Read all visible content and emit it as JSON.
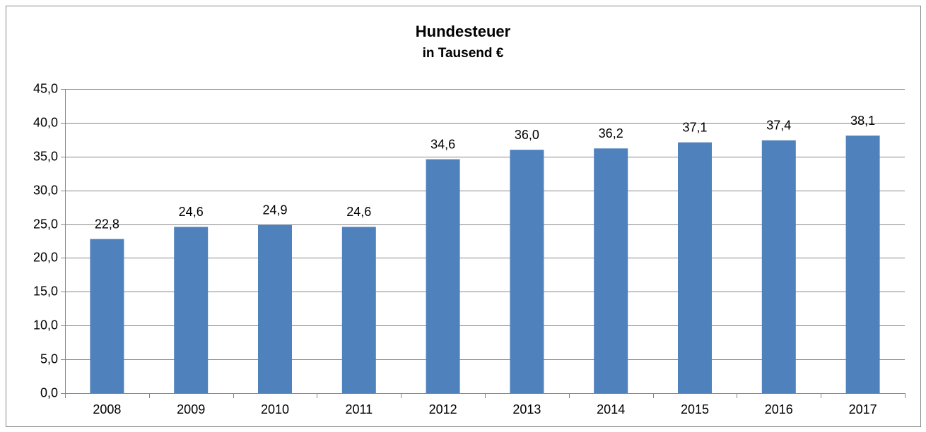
{
  "chart_data": {
    "type": "bar",
    "title": "Hundesteuer",
    "subtitle": "in Tausend €",
    "categories": [
      "2008",
      "2009",
      "2010",
      "2011",
      "2012",
      "2013",
      "2014",
      "2015",
      "2016",
      "2017"
    ],
    "values": [
      22.8,
      24.6,
      24.9,
      24.6,
      34.6,
      36.0,
      36.2,
      37.1,
      37.4,
      38.1
    ],
    "value_labels": [
      "22,8",
      "24,6",
      "24,9",
      "24,6",
      "34,6",
      "36,0",
      "36,2",
      "37,1",
      "37,4",
      "38,1"
    ],
    "color": "#4f81bd",
    "ylim": [
      0,
      45
    ],
    "yticks": [
      {
        "value": 0,
        "label": "0,0"
      },
      {
        "value": 5,
        "label": "5,0"
      },
      {
        "value": 10,
        "label": "10,0"
      },
      {
        "value": 15,
        "label": "15,0"
      },
      {
        "value": 20,
        "label": "20,0"
      },
      {
        "value": 25,
        "label": "25,0"
      },
      {
        "value": 30,
        "label": "30,0"
      },
      {
        "value": 35,
        "label": "35,0"
      },
      {
        "value": 40,
        "label": "40,0"
      },
      {
        "value": 45,
        "label": "45,0"
      }
    ],
    "grid": true
  }
}
